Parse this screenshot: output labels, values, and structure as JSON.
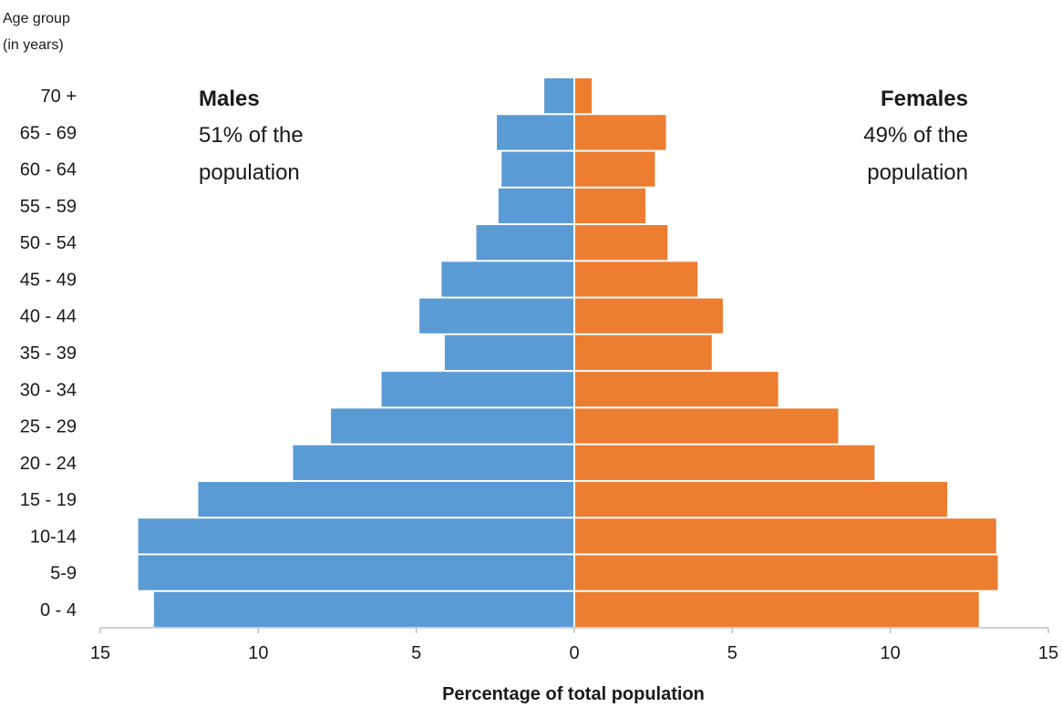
{
  "chart_data": {
    "type": "bar",
    "orientation": "horizontal",
    "subtype": "population-pyramid",
    "ylabel_lines": [
      "Age group",
      "(in years)"
    ],
    "xlabel": "Percentage of total population",
    "categories": [
      "0 - 4",
      "5-9",
      "10-14",
      "15 - 19",
      "20 - 24",
      "25 - 29",
      "30 - 34",
      "35 - 39",
      "40 - 44",
      "45 - 49",
      "50 - 54",
      "55 - 59",
      "60 - 64",
      "65 - 69",
      "70 +"
    ],
    "xlim": [
      -15,
      15
    ],
    "xticks": [
      -15,
      -10,
      -5,
      0,
      5,
      10,
      15
    ],
    "xtick_labels": [
      "15",
      "10",
      "5",
      "0",
      "5",
      "10",
      "15"
    ],
    "series": [
      {
        "name": "Males",
        "side": "left",
        "color": "#5b9bd5",
        "values": [
          13.3,
          13.8,
          13.8,
          11.9,
          8.9,
          7.7,
          6.1,
          4.1,
          4.9,
          4.2,
          3.1,
          2.4,
          2.3,
          2.45,
          0.95
        ]
      },
      {
        "name": "Females",
        "side": "right",
        "color": "#ed7d31",
        "values": [
          12.8,
          13.4,
          13.35,
          11.8,
          9.5,
          8.35,
          6.45,
          4.35,
          4.7,
          3.9,
          2.95,
          2.25,
          2.55,
          2.9,
          0.55
        ]
      }
    ],
    "annotations": {
      "males": {
        "title": "Males",
        "line1": "51% of the",
        "line2": "population"
      },
      "females": {
        "title": "Females",
        "line1": "49% of the",
        "line2": "population"
      }
    },
    "grid": false,
    "legend": "none"
  }
}
